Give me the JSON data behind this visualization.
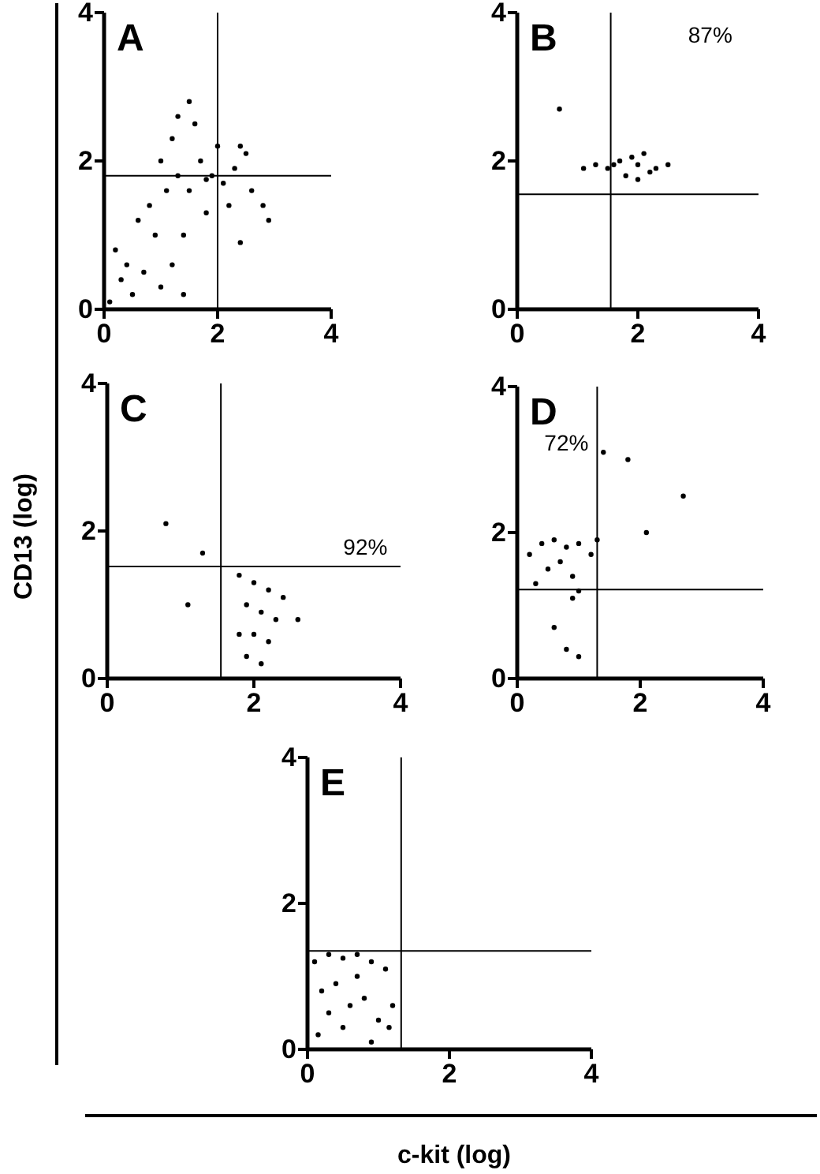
{
  "chart_data": [
    {
      "type": "scatter",
      "annotations": [
        "A",
        "CD13 (log)",
        "c-kit (log)"
      ],
      "marker": "circle",
      "xlim": [
        0,
        4
      ],
      "ylim": [
        0,
        4
      ],
      "xticks": [
        0,
        2,
        4
      ],
      "yticks": [
        0,
        2,
        4
      ],
      "ref_lines": [
        {
          "axis": "x",
          "value": 2
        },
        {
          "axis": "y",
          "value": 1.8
        }
      ],
      "series": [
        {
          "color": "#000000",
          "x": [
            0.1,
            0.3,
            0.5,
            0.2,
            0.7,
            0.9,
            0.6,
            1.0,
            1.2,
            0.8,
            1.1,
            1.4,
            1.3,
            1.5,
            1.7,
            1.9,
            2.1,
            2.3,
            2.5,
            2.6,
            2.2,
            1.8,
            2.0,
            1.6,
            1.2,
            1.4,
            1.0,
            2.4,
            2.8,
            2.9,
            1.8,
            2.4,
            0.4,
            1.3,
            1.5
          ],
          "values": [
            0.1,
            0.4,
            0.2,
            0.8,
            0.5,
            1.0,
            1.2,
            0.3,
            0.6,
            1.4,
            1.6,
            1.0,
            2.6,
            2.8,
            2.0,
            1.8,
            1.7,
            1.9,
            2.1,
            1.6,
            1.4,
            1.3,
            2.2,
            2.5,
            2.3,
            0.2,
            2.0,
            0.9,
            1.4,
            1.2,
            1.75,
            2.2,
            0.6,
            1.8,
            1.6
          ]
        }
      ]
    },
    {
      "type": "scatter",
      "annotations": [
        "B",
        "87%"
      ],
      "marker": "circle",
      "xlim": [
        0,
        4
      ],
      "ylim": [
        0,
        4
      ],
      "xticks": [
        0,
        2,
        4
      ],
      "yticks": [
        0,
        2,
        4
      ],
      "ref_lines": [
        {
          "axis": "x",
          "value": 1.55
        },
        {
          "axis": "y",
          "value": 1.55
        }
      ],
      "series": [
        {
          "color": "#000000",
          "x": [
            1.1,
            1.3,
            1.5,
            1.7,
            1.9,
            2.0,
            2.1,
            2.3,
            2.5,
            1.8,
            2.0,
            2.2,
            1.6,
            0.7
          ],
          "values": [
            1.9,
            1.95,
            1.9,
            2.0,
            2.05,
            1.95,
            2.1,
            1.9,
            1.95,
            1.8,
            1.75,
            1.85,
            1.95,
            2.7
          ]
        }
      ]
    },
    {
      "type": "scatter",
      "annotations": [
        "C",
        "92%"
      ],
      "marker": "circle",
      "xlim": [
        0,
        4
      ],
      "ylim": [
        0,
        4
      ],
      "xticks": [
        0,
        2,
        4
      ],
      "yticks": [
        0,
        2,
        4
      ],
      "ref_lines": [
        {
          "axis": "x",
          "value": 1.55
        },
        {
          "axis": "y",
          "value": 1.52
        }
      ],
      "series": [
        {
          "color": "#000000",
          "x": [
            1.8,
            2.0,
            2.2,
            1.9,
            2.1,
            2.3,
            2.0,
            2.2,
            1.8,
            1.9,
            2.1,
            2.4,
            2.6,
            0.8,
            1.3,
            1.1
          ],
          "values": [
            1.4,
            1.3,
            1.2,
            1.0,
            0.9,
            0.8,
            0.6,
            0.5,
            0.6,
            0.3,
            0.2,
            1.1,
            0.8,
            2.1,
            1.7,
            1.0
          ]
        }
      ]
    },
    {
      "type": "scatter",
      "annotations": [
        "D",
        "72%"
      ],
      "marker": "circle",
      "xlim": [
        0,
        4
      ],
      "ylim": [
        0,
        4
      ],
      "xticks": [
        0,
        2,
        4
      ],
      "yticks": [
        0,
        2,
        4
      ],
      "ref_lines": [
        {
          "axis": "x",
          "value": 1.3
        },
        {
          "axis": "y",
          "value": 1.22
        }
      ],
      "series": [
        {
          "color": "#000000",
          "x": [
            0.2,
            0.4,
            0.6,
            0.8,
            1.0,
            1.2,
            0.5,
            0.9,
            0.7,
            1.0,
            0.9,
            0.6,
            0.8,
            1.0,
            0.3,
            1.3,
            1.8,
            2.1,
            2.7,
            1.4
          ],
          "values": [
            1.7,
            1.85,
            1.9,
            1.8,
            1.85,
            1.7,
            1.5,
            1.4,
            1.6,
            1.2,
            1.1,
            0.7,
            0.4,
            0.3,
            1.3,
            1.9,
            3.0,
            2.0,
            2.5,
            3.1
          ]
        }
      ]
    },
    {
      "type": "scatter",
      "annotations": [
        "E"
      ],
      "marker": "circle",
      "xlim": [
        0,
        4
      ],
      "ylim": [
        0,
        4
      ],
      "xticks": [
        0,
        2,
        4
      ],
      "yticks": [
        0,
        2,
        4
      ],
      "ref_lines": [
        {
          "axis": "x",
          "value": 1.32
        },
        {
          "axis": "y",
          "value": 1.35
        }
      ],
      "series": [
        {
          "color": "#000000",
          "x": [
            0.1,
            0.3,
            0.5,
            0.7,
            0.9,
            1.1,
            1.2,
            0.2,
            0.4,
            0.6,
            0.8,
            1.0,
            0.15,
            0.5,
            0.9,
            1.15,
            0.3,
            0.7
          ],
          "values": [
            1.2,
            1.3,
            1.25,
            1.3,
            1.2,
            1.1,
            0.6,
            0.8,
            0.9,
            0.6,
            0.7,
            0.4,
            0.2,
            0.3,
            0.1,
            0.3,
            0.5,
            1.0
          ]
        }
      ]
    }
  ]
}
